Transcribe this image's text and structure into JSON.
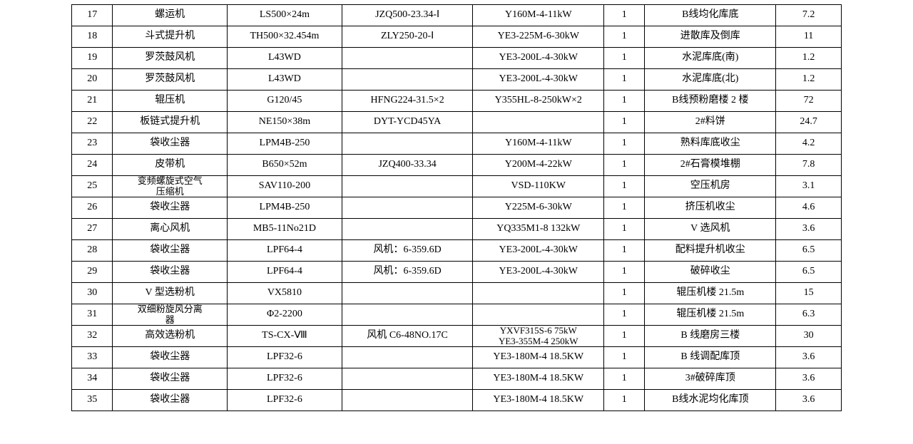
{
  "table": {
    "background_color": "#ffffff",
    "border_color": "#000000",
    "font_family": "SimSun",
    "font_size_pt": 10.5,
    "columns": [
      {
        "key": "seq",
        "width_pct": 5,
        "align": "center"
      },
      {
        "key": "name",
        "width_pct": 14,
        "align": "center"
      },
      {
        "key": "model",
        "width_pct": 14,
        "align": "center"
      },
      {
        "key": "reducer",
        "width_pct": 16,
        "align": "center"
      },
      {
        "key": "motor",
        "width_pct": 16,
        "align": "center"
      },
      {
        "key": "qty",
        "width_pct": 5,
        "align": "center"
      },
      {
        "key": "location",
        "width_pct": 16,
        "align": "center"
      },
      {
        "key": "value",
        "width_pct": 8,
        "align": "center"
      }
    ],
    "rows": [
      {
        "seq": "17",
        "name": "螺运机",
        "model": "LS500×24m",
        "reducer": "JZQ500-23.34-Ⅰ",
        "motor": "Y160M-4-11kW",
        "qty": "1",
        "location": "B线均化库底",
        "value": "7.2"
      },
      {
        "seq": "18",
        "name": "斗式提升机",
        "model": "TH500×32.454m",
        "reducer": "ZLY250-20-Ⅰ",
        "motor": "YE3-225M-6-30kW",
        "qty": "1",
        "location": "进散库及倒库",
        "value": "11"
      },
      {
        "seq": "19",
        "name": "罗茨鼓风机",
        "model": "L43WD",
        "reducer": "",
        "motor": "YE3-200L-4-30kW",
        "qty": "1",
        "location": "水泥库底(南)",
        "value": "1.2"
      },
      {
        "seq": "20",
        "name": "罗茨鼓风机",
        "model": "L43WD",
        "reducer": "",
        "motor": "YE3-200L-4-30kW",
        "qty": "1",
        "location": "水泥库底(北)",
        "value": "1.2"
      },
      {
        "seq": "21",
        "name": "辊压机",
        "model": "G120/45",
        "reducer": "HFNG224-31.5×2",
        "motor": "Y355HL-8-250kW×2",
        "qty": "1",
        "location": "B线预粉磨楼 2 楼",
        "value": "72"
      },
      {
        "seq": "22",
        "name": "板链式提升机",
        "model": "NE150×38m",
        "reducer": "DYT-YCD45YA",
        "motor": "",
        "qty": "1",
        "location": "2#料饼",
        "value": "24.7"
      },
      {
        "seq": "23",
        "name": "袋收尘器",
        "model": "LPM4B-250",
        "reducer": "",
        "motor": "Y160M-4-11kW",
        "qty": "1",
        "location": "熟料库底收尘",
        "value": "4.2"
      },
      {
        "seq": "24",
        "name": "皮带机",
        "model": "B650×52m",
        "reducer": "JZQ400-33.34",
        "motor": "Y200M-4-22kW",
        "qty": "1",
        "location": "2#石膏模堆棚",
        "value": "7.8"
      },
      {
        "seq": "25",
        "name": "变频螺旋式空气\n压缩机",
        "model": "SAV110-200",
        "reducer": "",
        "motor": "VSD-110KW",
        "qty": "1",
        "location": "空压机房",
        "value": "3.1"
      },
      {
        "seq": "26",
        "name": "袋收尘器",
        "model": "LPM4B-250",
        "reducer": "",
        "motor": "Y225M-6-30kW",
        "qty": "1",
        "location": "挤压机收尘",
        "value": "4.6"
      },
      {
        "seq": "27",
        "name": "离心风机",
        "model": "MB5-11No21D",
        "reducer": "",
        "motor": "YQ335M1-8 132kW",
        "qty": "1",
        "location": "V 选风机",
        "value": "3.6"
      },
      {
        "seq": "28",
        "name": "袋收尘器",
        "model": "LPF64-4",
        "reducer": "风机：6-359.6D",
        "motor": "YE3-200L-4-30kW",
        "qty": "1",
        "location": "配料提升机收尘",
        "value": "6.5"
      },
      {
        "seq": "29",
        "name": "袋收尘器",
        "model": "LPF64-4",
        "reducer": "风机：6-359.6D",
        "motor": "YE3-200L-4-30kW",
        "qty": "1",
        "location": "破碎收尘",
        "value": "6.5"
      },
      {
        "seq": "30",
        "name": "V 型选粉机",
        "model": "VX5810",
        "reducer": "",
        "motor": "",
        "qty": "1",
        "location": "辊压机楼 21.5m",
        "value": "15"
      },
      {
        "seq": "31",
        "name": "双细粉旋风分离\n器",
        "model": "Φ2-2200",
        "reducer": "",
        "motor": "",
        "qty": "1",
        "location": "辊压机楼 21.5m",
        "value": "6.3"
      },
      {
        "seq": "32",
        "name": "高效选粉机",
        "model": "TS-CX-Ⅷ",
        "reducer": "风机 C6-48NO.17C",
        "motor": "YXVF315S-6 75kW\nYE3-355M-4 250kW",
        "qty": "1",
        "location": "B 线磨房三楼",
        "value": "30"
      },
      {
        "seq": "33",
        "name": "袋收尘器",
        "model": "LPF32-6",
        "reducer": "",
        "motor": "YE3-180M-4 18.5KW",
        "qty": "1",
        "location": "B 线调配库顶",
        "value": "3.6"
      },
      {
        "seq": "34",
        "name": "袋收尘器",
        "model": "LPF32-6",
        "reducer": "",
        "motor": "YE3-180M-4 18.5KW",
        "qty": "1",
        "location": "3#破碎库顶",
        "value": "3.6"
      },
      {
        "seq": "35",
        "name": "袋收尘器",
        "model": "LPF32-6",
        "reducer": "",
        "motor": "YE3-180M-4 18.5KW",
        "qty": "1",
        "location": "B线水泥均化库顶",
        "value": "3.6"
      }
    ]
  }
}
